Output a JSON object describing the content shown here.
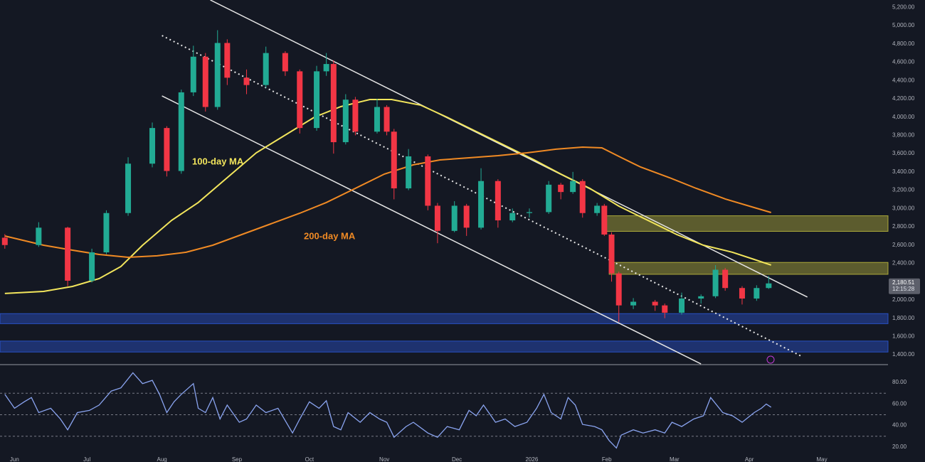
{
  "chart_data": [
    {
      "type": "candlestick",
      "xlim": [
        -6,
        359
      ],
      "ylim": [
        1300,
        5280
      ],
      "up_color": "#22ab94",
      "down_color": "#f23645",
      "x": [
        -4,
        10,
        22,
        32,
        38,
        47,
        57,
        63,
        69,
        74,
        79,
        84,
        88,
        96,
        104,
        112,
        118,
        125,
        129,
        132,
        137,
        141,
        150,
        154,
        157,
        163,
        171,
        175,
        182,
        187,
        193,
        200,
        206,
        213,
        221,
        226,
        231,
        235,
        241,
        244,
        247,
        250,
        256,
        265,
        269,
        276,
        284,
        290,
        294,
        301,
        307,
        312
      ],
      "open": [
        2680,
        2600,
        2790,
        2210,
        2520,
        2950,
        3490,
        3880,
        3410,
        4270,
        4660,
        4110,
        4810,
        4430,
        4350,
        4700,
        4500,
        3880,
        4500,
        4580,
        3725,
        4190,
        3840,
        4110,
        3840,
        3220,
        3570,
        3030,
        2755,
        3030,
        2790,
        3300,
        2870,
        2950,
        2960,
        3260,
        3180,
        3300,
        2950,
        3030,
        2715,
        2290,
        1940,
        1980,
        1940,
        1860,
        2015,
        2040,
        2330,
        2130,
        2015,
        2130
      ],
      "high": [
        2720,
        2850,
        2800,
        2560,
        2980,
        3560,
        3940,
        3900,
        4300,
        4780,
        4700,
        4950,
        4850,
        4520,
        4770,
        4720,
        4520,
        4560,
        4700,
        4620,
        4250,
        4220,
        4200,
        4130,
        3870,
        3650,
        3590,
        3060,
        3080,
        3050,
        3440,
        3320,
        3000,
        3000,
        3300,
        3280,
        3400,
        3320,
        3060,
        3050,
        2740,
        2310,
        2020,
        2000,
        1960,
        2080,
        2060,
        2380,
        2350,
        2150,
        2160,
        2260
      ],
      "low": [
        2560,
        2580,
        2150,
        2190,
        2500,
        2920,
        3450,
        3350,
        3380,
        4230,
        4060,
        4080,
        4350,
        4250,
        4320,
        4450,
        3820,
        3850,
        4450,
        3600,
        3700,
        3800,
        3820,
        3800,
        3100,
        3200,
        2980,
        2620,
        2740,
        2700,
        2770,
        2790,
        2850,
        2900,
        2940,
        3100,
        3160,
        2900,
        2920,
        2700,
        2200,
        1760,
        1900,
        1880,
        1800,
        1840,
        1960,
        2020,
        2100,
        1950,
        1990,
        2120
      ],
      "close": [
        2600,
        2790,
        2210,
        2520,
        2950,
        3490,
        3880,
        3410,
        4270,
        4660,
        4110,
        4810,
        4430,
        4350,
        4700,
        4500,
        3880,
        4500,
        4580,
        3725,
        4190,
        3840,
        4110,
        3840,
        3220,
        3570,
        3030,
        2755,
        3030,
        2790,
        3300,
        2870,
        2950,
        2960,
        3260,
        3180,
        3300,
        2950,
        3030,
        2715,
        2290,
        1940,
        1980,
        1940,
        1860,
        2015,
        2040,
        2330,
        2130,
        2015,
        2130,
        2180.51
      ],
      "lines": [
        {
          "name": "100-day MA",
          "color": "#f2e55c",
          "x": [
            -4,
            12,
            24,
            35,
            44,
            53,
            65,
            76,
            88,
            100,
            112,
            124,
            135,
            147,
            156,
            168,
            179,
            191,
            203,
            215,
            226,
            238,
            250,
            262,
            274,
            285,
            297,
            306,
            313
          ],
          "values": [
            2070,
            2093,
            2147,
            2233,
            2365,
            2598,
            2870,
            3065,
            3337,
            3609,
            3803,
            3997,
            4114,
            4192,
            4192,
            4130,
            3997,
            3842,
            3687,
            3531,
            3376,
            3220,
            3026,
            2870,
            2715,
            2598,
            2521,
            2443,
            2381
          ]
        },
        {
          "name": "200-day MA",
          "color": "#f08a24",
          "x": [
            -4,
            12,
            24,
            35,
            47,
            59,
            71,
            82,
            94,
            106,
            118,
            129,
            141,
            153,
            165,
            176,
            188,
            200,
            212,
            224,
            235,
            243,
            250,
            259,
            271,
            282,
            294,
            306,
            313
          ],
          "values": [
            2699,
            2598,
            2544,
            2497,
            2466,
            2482,
            2521,
            2598,
            2715,
            2831,
            2948,
            3065,
            3220,
            3376,
            3477,
            3531,
            3554,
            3578,
            3609,
            3648,
            3671,
            3663,
            3570,
            3453,
            3337,
            3220,
            3104,
            3010,
            2956
          ]
        }
      ],
      "trendlines": [
        {
          "style": "solid",
          "x": [
            81,
            328
          ],
          "values": [
            5280,
            2031
          ]
        },
        {
          "style": "solid",
          "x": [
            61,
            284
          ],
          "values": [
            4231,
            1300
          ]
        },
        {
          "style": "dotted",
          "x": [
            61,
            326
          ],
          "values": [
            4891,
            1378
          ]
        }
      ],
      "zones": [
        {
          "x_start": 244,
          "low": 2750,
          "high": 2920,
          "color": "#c9c43e"
        },
        {
          "x_start": 246,
          "low": 2280,
          "high": 2410,
          "color": "#c9c43e"
        },
        {
          "low": 1740,
          "high": 1850,
          "color": "#2c5be0"
        },
        {
          "low": 1430,
          "high": 1550,
          "color": "#2c5be0"
        }
      ],
      "yticks": [
        {
          "value": 1400,
          "label": "1,400.00"
        },
        {
          "value": 1600,
          "label": "1,600.00"
        },
        {
          "value": 1800,
          "label": "1,800.00"
        },
        {
          "value": 2000,
          "label": "2,000.00"
        },
        {
          "value": 2200,
          "label": "2,200.00"
        },
        {
          "value": 2400,
          "label": "2,400.00"
        },
        {
          "value": 2600,
          "label": "2,600.00"
        },
        {
          "value": 2800,
          "label": "2,800.00"
        },
        {
          "value": 3000,
          "label": "3,000.00"
        },
        {
          "value": 3200,
          "label": "3,200.00"
        },
        {
          "value": 3400,
          "label": "3,400.00"
        },
        {
          "value": 3600,
          "label": "3,600.00"
        },
        {
          "value": 3800,
          "label": "3,800.00"
        },
        {
          "value": 4000,
          "label": "4,000.00"
        },
        {
          "value": 4200,
          "label": "4,200.00"
        },
        {
          "value": 4400,
          "label": "4,400.00"
        },
        {
          "value": 4600,
          "label": "4,600.00"
        },
        {
          "value": 4800,
          "label": "4,800.00"
        },
        {
          "value": 5000,
          "label": "5,000.00"
        },
        {
          "value": 5200,
          "label": "5,200.00"
        }
      ],
      "last_price": {
        "value": 2180.51,
        "label": "2,180.51"
      },
      "countdown": "12:15:28"
    },
    {
      "type": "line",
      "xlim": [
        -6,
        359
      ],
      "ylim": [
        6,
        92
      ],
      "color": "#8aa4f0",
      "levels": [
        70,
        50,
        30
      ],
      "x": [
        -4,
        0,
        4,
        7,
        10,
        15,
        19,
        22,
        26,
        31,
        35,
        40,
        44,
        49,
        53,
        57,
        60,
        63,
        66,
        69,
        74,
        76,
        79,
        82,
        85,
        88,
        93,
        96,
        100,
        104,
        109,
        115,
        118,
        122,
        126,
        129,
        132,
        135,
        138,
        143,
        147,
        151,
        154,
        157,
        162,
        165,
        171,
        175,
        179,
        184,
        188,
        191,
        194,
        199,
        203,
        207,
        212,
        216,
        219,
        222,
        226,
        229,
        232,
        235,
        240,
        243,
        246,
        249,
        251,
        256,
        260,
        265,
        269,
        272,
        276,
        281,
        285,
        288,
        293,
        297,
        301,
        306,
        309,
        311,
        313
      ],
      "values": [
        69,
        56,
        62,
        66,
        52,
        56,
        46,
        36,
        52,
        54,
        59,
        72,
        75,
        89,
        79,
        82,
        69,
        52,
        62,
        69,
        79,
        56,
        52,
        66,
        46,
        59,
        43,
        46,
        59,
        52,
        56,
        33,
        46,
        62,
        56,
        63,
        39,
        36,
        52,
        43,
        52,
        46,
        43,
        29,
        39,
        43,
        33,
        29,
        39,
        36,
        54,
        49,
        59,
        43,
        46,
        39,
        43,
        56,
        69,
        52,
        46,
        66,
        59,
        41,
        39,
        36,
        26,
        19,
        31,
        36,
        33,
        36,
        33,
        43,
        39,
        46,
        49,
        66,
        52,
        49,
        43,
        52,
        56,
        60,
        57
      ],
      "yticks": [
        {
          "value": 20,
          "label": "20.00"
        },
        {
          "value": 40,
          "label": "40.00"
        },
        {
          "value": 60,
          "label": "60.00"
        },
        {
          "value": 80,
          "label": "80.00"
        }
      ],
      "xticks": [
        {
          "value": 0,
          "label": "Jun"
        },
        {
          "value": 30,
          "label": "Jul"
        },
        {
          "value": 61,
          "label": "Aug"
        },
        {
          "value": 92,
          "label": "Sep"
        },
        {
          "value": 122,
          "label": "Oct"
        },
        {
          "value": 153,
          "label": "Nov"
        },
        {
          "value": 183,
          "label": "Dec"
        },
        {
          "value": 214,
          "label": "2026"
        },
        {
          "value": 245,
          "label": "Feb"
        },
        {
          "value": 273,
          "label": "Mar"
        },
        {
          "value": 304,
          "label": "Apr"
        },
        {
          "value": 334,
          "label": "May"
        }
      ]
    }
  ]
}
